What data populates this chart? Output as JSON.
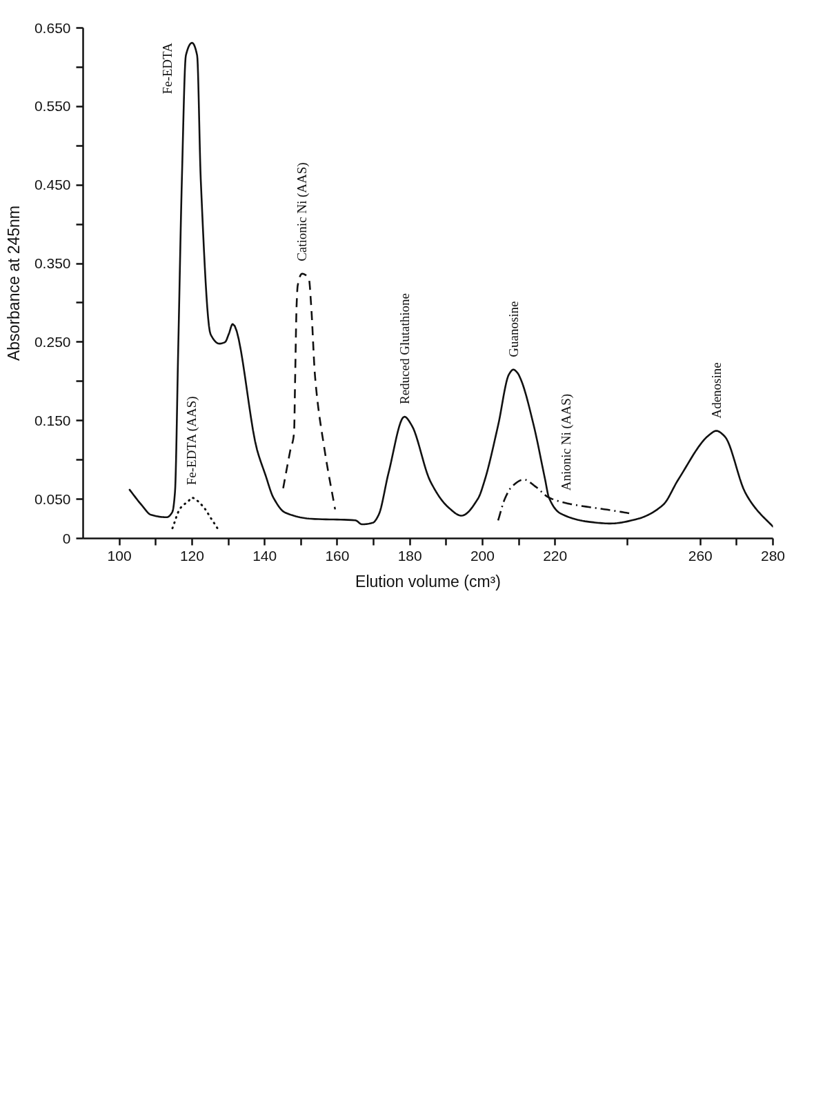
{
  "chart_data": {
    "type": "line",
    "xlabel": "Elution volume (cm³)",
    "ylabel": "Absorbance at 245nm",
    "xlim": [
      90,
      280
    ],
    "ylim": [
      0,
      0.65
    ],
    "xticks": [
      100,
      {
        "value": 110,
        "label": null
      },
      120,
      {
        "value": 130,
        "label": null
      },
      140,
      {
        "value": 150,
        "label": null
      },
      160,
      {
        "value": 170,
        "label": null
      },
      180,
      {
        "value": 190,
        "label": null
      },
      200,
      {
        "value": 210,
        "label": null
      },
      220,
      {
        "value": 240,
        "label": null
      },
      260,
      {
        "value": 270,
        "label": null
      },
      280
    ],
    "yticks": [
      0,
      {
        "value": 0.05,
        "label": "0.050"
      },
      {
        "value": 0.1,
        "label": null
      },
      {
        "value": 0.15,
        "label": "0.150"
      },
      {
        "value": 0.2,
        "label": null
      },
      {
        "value": 0.25,
        "label": "0.250"
      },
      {
        "value": 0.3,
        "label": null
      },
      {
        "value": 0.35,
        "label": "0.350"
      },
      {
        "value": 0.4,
        "label": null
      },
      {
        "value": 0.45,
        "label": "0.450"
      },
      {
        "value": 0.5,
        "label": null
      },
      {
        "value": 0.55,
        "label": "0.550"
      },
      {
        "value": 0.6,
        "label": null
      },
      {
        "value": 0.65,
        "label": "0.650"
      }
    ],
    "series": [
      {
        "color": "#111111",
        "line_style": "solid",
        "x": [
          102.8,
          106.2,
          108.7,
          113.0,
          114.6,
          115.3,
          116.2,
          117.2,
          118.3,
          120.0,
          121.4,
          122.4,
          125.1,
          127.5,
          129.1,
          130.1,
          131.2,
          137.9,
          140.2,
          142.4,
          145.6,
          152.8,
          165.0,
          166.8,
          169.8,
          171.4,
          174.1,
          178.5,
          180.5,
          185.6,
          190.5,
          194.2,
          198.8,
          200.6,
          204.3,
          207.3,
          208.5,
          209.6,
          210.6,
          214.1,
          217.2,
          218.3,
          221.4,
          229.6,
          235.2,
          242.8,
          249.8,
          253.8,
          262.5,
          264.4,
          266.7,
          272.3,
          275.1,
          280.0
        ],
        "values": [
          0.062,
          0.042,
          0.03,
          0.027,
          0.034,
          0.059,
          0.243,
          0.457,
          0.615,
          0.631,
          0.615,
          0.457,
          0.26,
          0.248,
          0.25,
          0.26,
          0.273,
          0.113,
          0.081,
          0.052,
          0.033,
          0.025,
          0.023,
          0.018,
          0.02,
          0.03,
          0.083,
          0.155,
          0.144,
          0.073,
          0.04,
          0.029,
          0.051,
          0.074,
          0.144,
          0.209,
          0.215,
          0.211,
          0.202,
          0.144,
          0.076,
          0.052,
          0.032,
          0.021,
          0.019,
          0.025,
          0.043,
          0.074,
          0.132,
          0.137,
          0.13,
          0.059,
          0.039,
          0.015
        ]
      },
      {
        "color": "#111111",
        "line_style": "dotted",
        "x": [
          114.6,
          116.7,
          119.3,
          119.8,
          122.8,
          125.3,
          127.4
        ],
        "values": [
          0.013,
          0.038,
          0.049,
          0.052,
          0.042,
          0.025,
          0.01
        ]
      },
      {
        "color": "#111111",
        "line_style": "dashed",
        "x": [
          145.1,
          147.1,
          148.1,
          148.4,
          148.8,
          149.1,
          150.3,
          152.2,
          152.8,
          153.9,
          156.5,
          159.4
        ],
        "values": [
          0.064,
          0.113,
          0.135,
          0.205,
          0.297,
          0.322,
          0.337,
          0.33,
          0.297,
          0.205,
          0.113,
          0.037
        ]
      },
      {
        "color": "#111111",
        "line_style": "dashdot",
        "x": [
          204.3,
          206.2,
          208.1,
          211.4,
          214.6,
          218.3,
          223.0,
          225.1,
          235.2,
          240.5
        ],
        "values": [
          0.023,
          0.051,
          0.066,
          0.075,
          0.066,
          0.052,
          0.045,
          0.043,
          0.036,
          0.032
        ]
      }
    ],
    "annotations": [
      {
        "text": "Fe-EDTA",
        "x": 120.0,
        "y": 0.631
      },
      {
        "text": "Fe-EDTA (AAS)",
        "x": 119.8,
        "y": 0.052
      },
      {
        "text": "Cationic Ni (AAS)",
        "x": 150.3,
        "y": 0.337
      },
      {
        "text": "Reduced Glutathione",
        "x": 178.5,
        "y": 0.155
      },
      {
        "text": "Guanosine",
        "x": 208.5,
        "y": 0.215
      },
      {
        "text": "Anionic Ni (AAS)",
        "x": 223.0,
        "y": 0.045
      },
      {
        "text": "Adenosine",
        "x": 264.4,
        "y": 0.137
      }
    ]
  }
}
